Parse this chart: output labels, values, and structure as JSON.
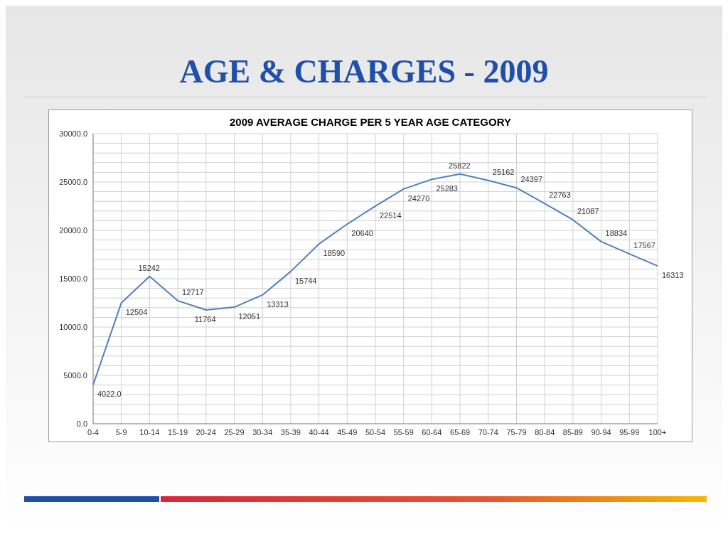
{
  "chart_data": {
    "type": "line",
    "title": "AGE & CHARGES - 2009",
    "subtitle": "2009 AVERAGE CHARGE PER 5 YEAR AGE CATEGORY",
    "categories": [
      "0-4",
      "5-9",
      "10-14",
      "15-19",
      "20-24",
      "25-29",
      "30-34",
      "35-39",
      "40-44",
      "45-49",
      "50-54",
      "55-59",
      "60-64",
      "65-69",
      "70-74",
      "75-79",
      "80-84",
      "85-89",
      "90-94",
      "95-99",
      "100+"
    ],
    "series": [
      {
        "color": "#4f81bd",
        "values": [
          4022,
          12504,
          15242,
          12717,
          11764,
          12051,
          13313,
          15744,
          18590,
          20640,
          22514,
          24270,
          25283,
          25822,
          25162,
          24397,
          22763,
          21087,
          18834,
          17567,
          16313
        ],
        "value_labels": [
          "4022.0",
          "12504",
          "15242",
          "12717",
          "11764",
          "12051",
          "13313",
          "15744",
          "18590",
          "20640",
          "22514",
          "24270",
          "25283",
          "25822",
          "25162",
          "24397",
          "22763",
          "21087",
          "18834",
          "17567",
          "16313"
        ]
      }
    ],
    "ylim": [
      0,
      30000
    ],
    "yticks": [
      {
        "value": 0,
        "label": "0.0"
      },
      {
        "value": 1000,
        "label": null
      },
      {
        "value": 2000,
        "label": null
      },
      {
        "value": 3000,
        "label": null
      },
      {
        "value": 4000,
        "label": null
      },
      {
        "value": 5000,
        "label": "5000.0"
      },
      {
        "value": 6000,
        "label": null
      },
      {
        "value": 7000,
        "label": null
      },
      {
        "value": 8000,
        "label": null
      },
      {
        "value": 9000,
        "label": null
      },
      {
        "value": 10000,
        "label": "10000.0"
      },
      {
        "value": 11000,
        "label": null
      },
      {
        "value": 12000,
        "label": null
      },
      {
        "value": 13000,
        "label": null
      },
      {
        "value": 14000,
        "label": null
      },
      {
        "value": 15000,
        "label": "15000.0"
      },
      {
        "value": 16000,
        "label": null
      },
      {
        "value": 17000,
        "label": null
      },
      {
        "value": 18000,
        "label": null
      },
      {
        "value": 19000,
        "label": null
      },
      {
        "value": 20000,
        "label": "20000.0"
      },
      {
        "value": 21000,
        "label": null
      },
      {
        "value": 22000,
        "label": null
      },
      {
        "value": 23000,
        "label": null
      },
      {
        "value": 24000,
        "label": null
      },
      {
        "value": 25000,
        "label": "25000.0"
      },
      {
        "value": 26000,
        "label": null
      },
      {
        "value": 27000,
        "label": null
      },
      {
        "value": 28000,
        "label": null
      },
      {
        "value": 29000,
        "label": null
      },
      {
        "value": 30000,
        "label": "30000.0"
      }
    ],
    "grid": true,
    "marker": "none",
    "line_style": "solid",
    "legend": false
  }
}
